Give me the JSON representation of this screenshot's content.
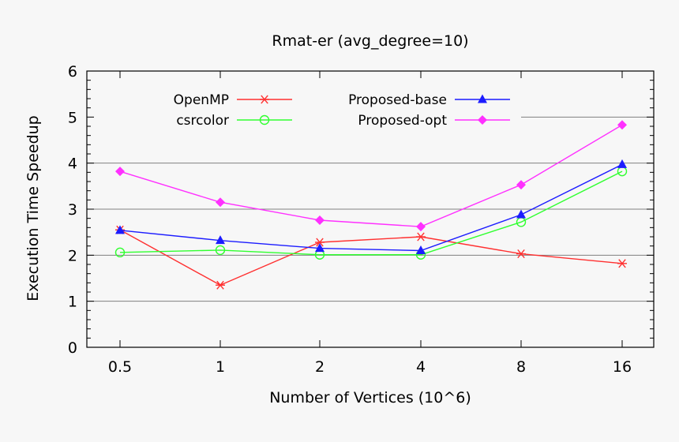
{
  "chart_data": {
    "type": "line",
    "title": "Rmat-er (avg_degree=10)",
    "xlabel": "Number of Vertices (10^6)",
    "ylabel": "Execution Time Speedup",
    "categories": [
      "0.5",
      "1",
      "2",
      "4",
      "8",
      "16"
    ],
    "ylim": [
      0,
      6
    ],
    "yticks": [
      "0",
      "1",
      "2",
      "3",
      "4",
      "5",
      "6"
    ],
    "grid": "horizontal",
    "legend_position": "top",
    "series": [
      {
        "name": "OpenMP",
        "color": "#ff3030",
        "marker": "asterisk",
        "values": [
          2.55,
          1.35,
          2.28,
          2.4,
          2.03,
          1.82
        ]
      },
      {
        "name": "csrcolor",
        "color": "#30ff30",
        "marker": "open-circle",
        "values": [
          2.06,
          2.11,
          2.01,
          2.01,
          2.72,
          3.82
        ]
      },
      {
        "name": "Proposed-base",
        "color": "#1c1cff",
        "marker": "filled-triangle",
        "values": [
          2.54,
          2.32,
          2.15,
          2.1,
          2.88,
          3.97
        ]
      },
      {
        "name": "Proposed-opt",
        "color": "#ff30ff",
        "marker": "filled-diamond",
        "values": [
          3.82,
          3.15,
          2.76,
          2.62,
          3.53,
          4.83
        ]
      }
    ]
  }
}
